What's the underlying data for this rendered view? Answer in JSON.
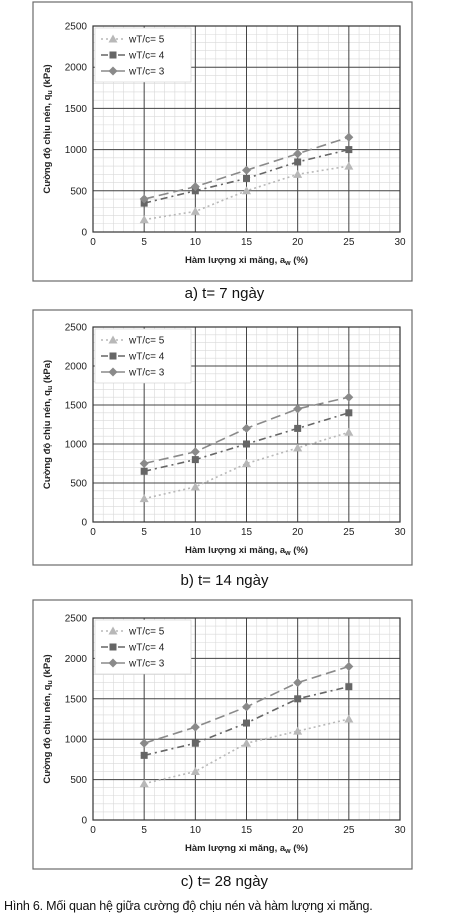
{
  "figure_caption": "Hình 6. Mối quan hệ giữa cường độ chịu nén và hàm lượng xi măng.",
  "colors": {
    "wTc5": "#b8b8b8",
    "wTc4": "#666666",
    "wTc3": "#8a8a8a",
    "frame": "#6a6a6a"
  },
  "chart_data": [
    {
      "type": "line",
      "caption": "a) t= 7 ngày",
      "xlabel": "Hàm lượng xi măng, a",
      "xlabel_sub": "w",
      "xlabel_unit": " (%)",
      "ylabel": "Cường độ chịu nén, q",
      "ylabel_sub": "u",
      "ylabel_unit": " (kPa)",
      "xlim": [
        0,
        30
      ],
      "ylim": [
        0,
        2500
      ],
      "xticks": [
        0,
        5,
        10,
        15,
        20,
        25,
        30
      ],
      "yticks": [
        0,
        500,
        1000,
        1500,
        2000,
        2500
      ],
      "x": [
        5,
        10,
        15,
        20,
        25
      ],
      "legend_position": "top-left",
      "grid": true,
      "series": [
        {
          "name": "wT/c= 5",
          "values": [
            150,
            250,
            500,
            700,
            800
          ],
          "marker": "triangle",
          "dash": "2,3"
        },
        {
          "name": "wT/c= 4",
          "values": [
            350,
            500,
            650,
            850,
            1000
          ],
          "marker": "square",
          "dash": "7,4,2,4"
        },
        {
          "name": "wT/c= 3",
          "values": [
            400,
            550,
            750,
            950,
            1150
          ],
          "marker": "diamond",
          "dash": "10,5"
        }
      ]
    },
    {
      "type": "line",
      "caption": "b) t= 14 ngày",
      "xlabel": "Hàm lượng xi măng, a",
      "xlabel_sub": "w",
      "xlabel_unit": " (%)",
      "ylabel": "Cường độ chịu nén, q",
      "ylabel_sub": "u",
      "ylabel_unit": " (kPa)",
      "xlim": [
        0,
        30
      ],
      "ylim": [
        0,
        2500
      ],
      "xticks": [
        0,
        5,
        10,
        15,
        20,
        25,
        30
      ],
      "yticks": [
        0,
        500,
        1000,
        1500,
        2000,
        2500
      ],
      "x": [
        5,
        10,
        15,
        20,
        25
      ],
      "legend_position": "top-left",
      "grid": true,
      "series": [
        {
          "name": "wT/c= 5",
          "values": [
            300,
            450,
            750,
            950,
            1150
          ],
          "marker": "triangle",
          "dash": "2,3"
        },
        {
          "name": "wT/c= 4",
          "values": [
            650,
            800,
            1000,
            1200,
            1400
          ],
          "marker": "square",
          "dash": "7,4,2,4"
        },
        {
          "name": "wT/c= 3",
          "values": [
            750,
            900,
            1200,
            1450,
            1600
          ],
          "marker": "diamond",
          "dash": "10,5"
        }
      ]
    },
    {
      "type": "line",
      "caption": "c) t= 28 ngày",
      "xlabel": "Hàm lượng xi măng, a",
      "xlabel_sub": "w",
      "xlabel_unit": " (%)",
      "ylabel": "Cường độ chịu nén, q",
      "ylabel_sub": "u",
      "ylabel_unit": " (kPa)",
      "xlim": [
        0,
        30
      ],
      "ylim": [
        0,
        2500
      ],
      "xticks": [
        0,
        5,
        10,
        15,
        20,
        25,
        30
      ],
      "yticks": [
        0,
        500,
        1000,
        1500,
        2000,
        2500
      ],
      "x": [
        5,
        10,
        15,
        20,
        25
      ],
      "legend_position": "top-left",
      "grid": true,
      "series": [
        {
          "name": "wT/c= 5",
          "values": [
            450,
            600,
            950,
            1100,
            1250
          ],
          "marker": "triangle",
          "dash": "2,3"
        },
        {
          "name": "wT/c= 4",
          "values": [
            800,
            950,
            1200,
            1500,
            1650
          ],
          "marker": "square",
          "dash": "7,4,2,4"
        },
        {
          "name": "wT/c= 3",
          "values": [
            950,
            1150,
            1400,
            1700,
            1900
          ],
          "marker": "diamond",
          "dash": "10,5"
        }
      ]
    }
  ]
}
